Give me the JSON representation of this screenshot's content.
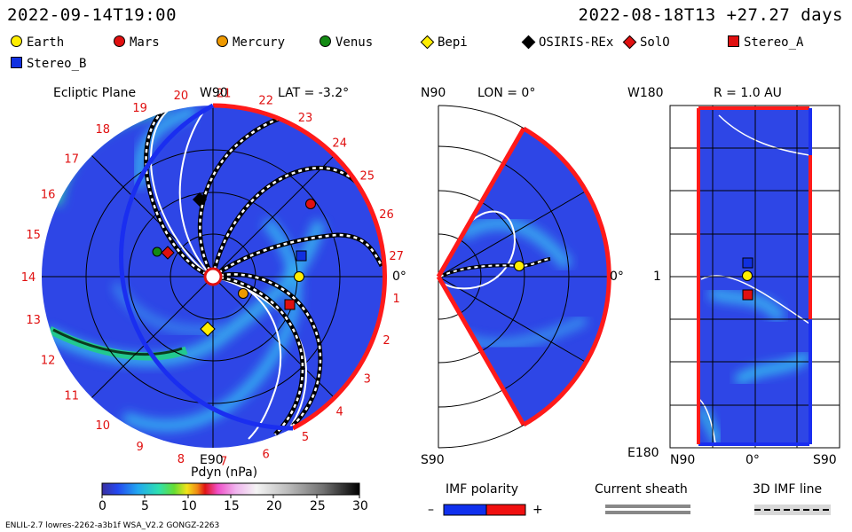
{
  "header": {
    "left_time": "2022-09-14T19:00",
    "right_time": "2022-08-18T13 +27.27 days"
  },
  "legend": [
    {
      "label": "Earth",
      "shape": "circle",
      "color": "#ffee00"
    },
    {
      "label": "Mars",
      "shape": "circle",
      "color": "#e01010"
    },
    {
      "label": "Mercury",
      "shape": "circle",
      "color": "#ee9900"
    },
    {
      "label": "Venus",
      "shape": "circle",
      "color": "#138a13"
    },
    {
      "label": "Bepi",
      "shape": "diamond",
      "color": "#ffee00"
    },
    {
      "label": "OSIRIS-REx",
      "shape": "diamond",
      "color": "#000000"
    },
    {
      "label": "SolO",
      "shape": "diamond",
      "color": "#e01010"
    },
    {
      "label": "Stereo_A",
      "shape": "square",
      "color": "#e01010"
    },
    {
      "label": "Stereo_B",
      "shape": "square",
      "color": "#1030e0"
    }
  ],
  "panel1": {
    "title": "Ecliptic Plane",
    "lat": "LAT = -3.2°",
    "top_label": "W90",
    "bottom_label": "E90",
    "right_label": "0°",
    "days": [
      "20",
      "21",
      "22",
      "23",
      "24",
      "25",
      "26",
      "27",
      "1",
      "2",
      "3",
      "4",
      "5",
      "6",
      "7",
      "8",
      "9",
      "10",
      "11",
      "12",
      "13",
      "14",
      "15",
      "16",
      "17",
      "18",
      "19"
    ]
  },
  "panel2": {
    "n_label": "N90",
    "s_label": "S90",
    "lon": "LON = 0°",
    "right_label": "0°"
  },
  "panel3": {
    "top_left": "W180",
    "bottom_left": "E180",
    "r_label": "R = 1.0 AU",
    "mid_label": "1",
    "x_ticks": [
      "N90",
      "0°",
      "S90"
    ]
  },
  "colorbar": {
    "title": "Pdyn (nPa)",
    "ticks": [
      "0",
      "5",
      "10",
      "15",
      "20",
      "25",
      "30"
    ]
  },
  "imf": {
    "title": "IMF polarity",
    "minus": "–",
    "plus": "+"
  },
  "sheath": {
    "title": "Current sheath"
  },
  "imfline": {
    "title": "3D IMF line"
  },
  "footer": {
    "left": "ENLIL-2.7 lowres-2262-a3b1f WSA_V2.2 GONGZ-2263"
  },
  "colors": {
    "bg_blue": "#2e46e6",
    "ring_red": "#ff1a1a",
    "ring_blue": "#1a2ef0"
  }
}
